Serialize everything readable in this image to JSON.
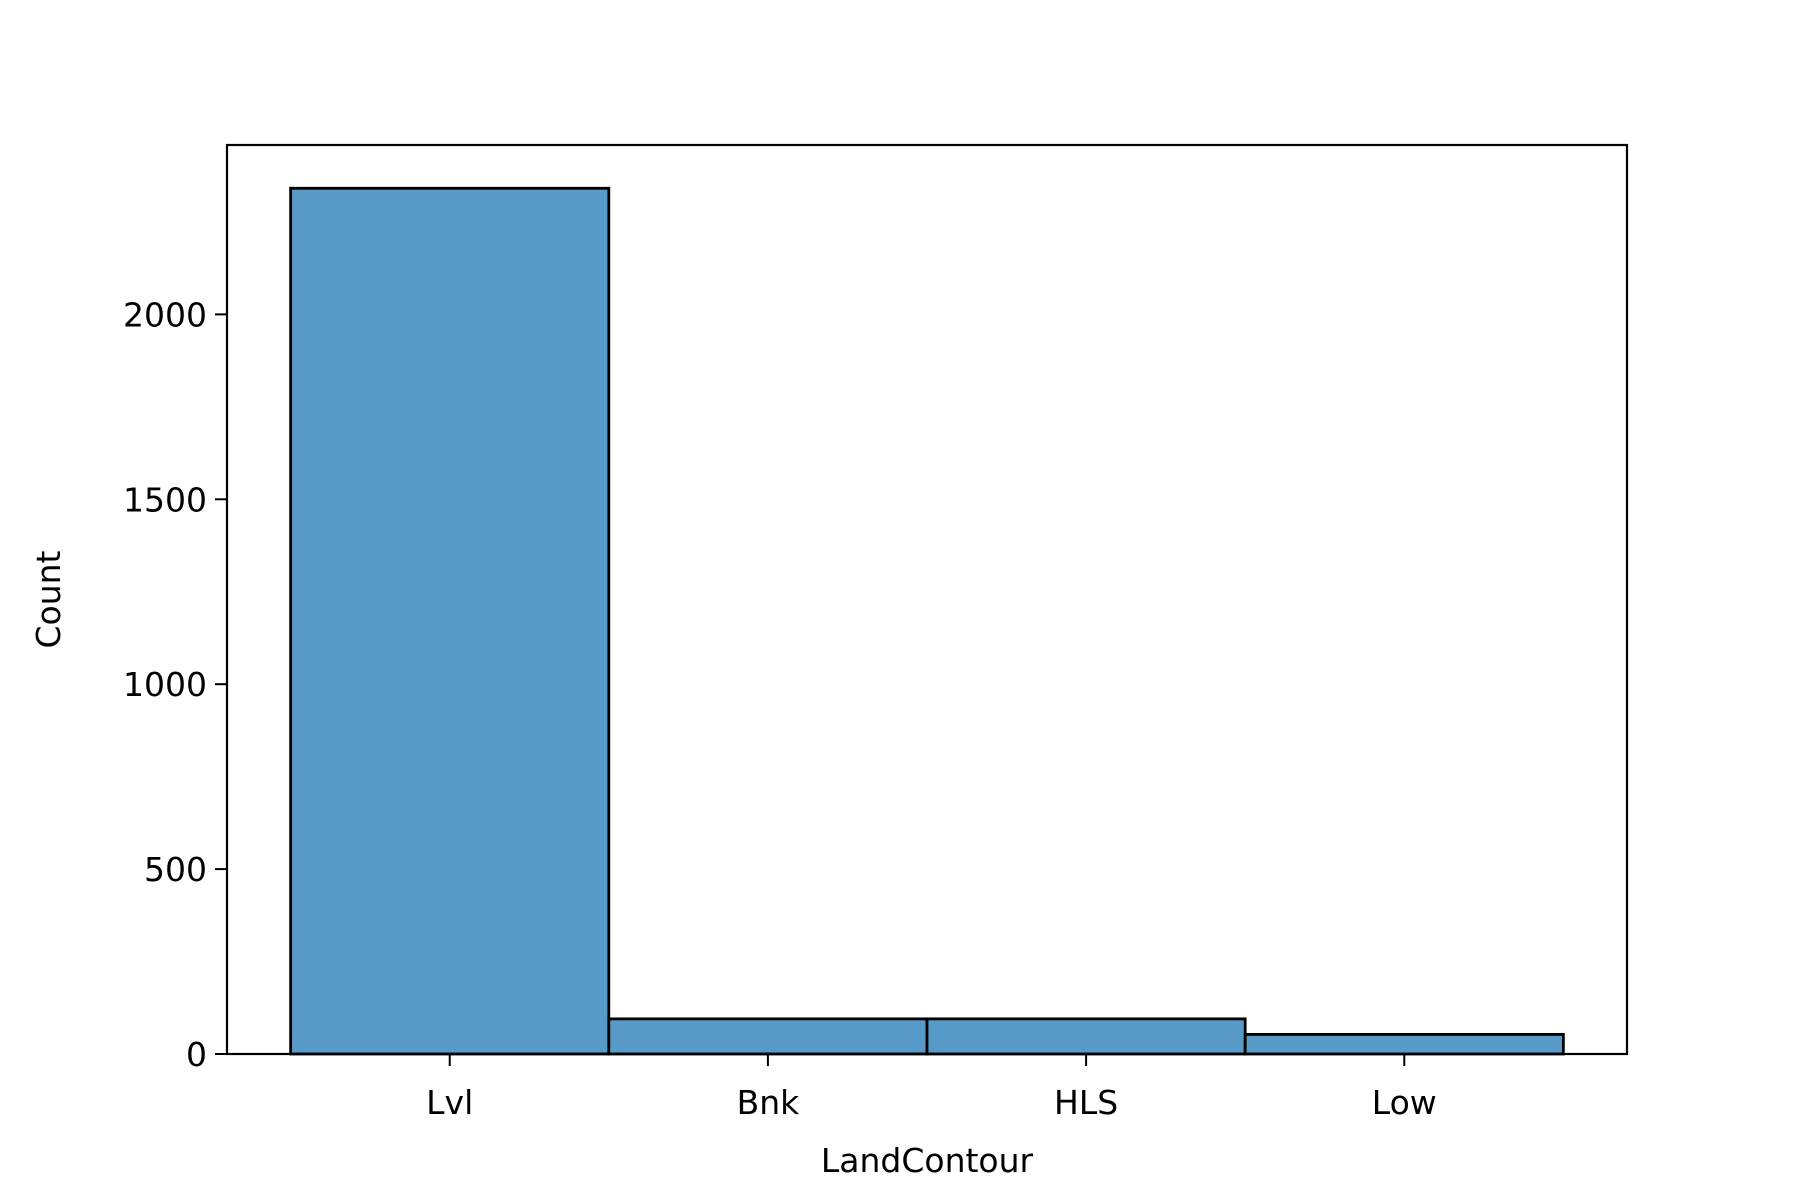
{
  "chart_data": {
    "type": "bar",
    "title": "",
    "xlabel": "LandContour",
    "ylabel": "Count",
    "categories": [
      "Lvl",
      "Bnk",
      "HLS",
      "Low"
    ],
    "values": [
      2341,
      95,
      95,
      53
    ],
    "ylim": [
      0,
      2458
    ],
    "yticks": [
      0,
      500,
      1000,
      1500,
      2000
    ],
    "grid": false,
    "legend": "none",
    "bar_color": "#5799c7",
    "edge_color": "#000000"
  }
}
